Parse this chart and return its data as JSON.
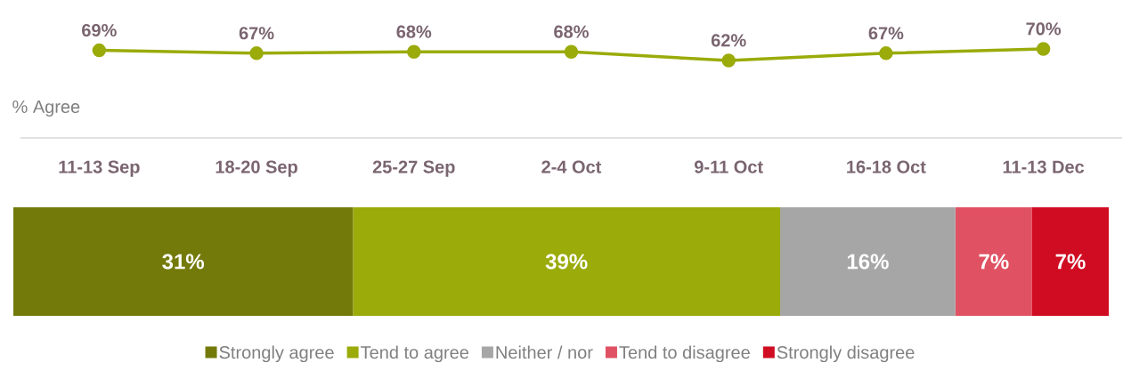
{
  "chart_data": [
    {
      "type": "line",
      "annotations": [
        "% Agree"
      ],
      "categories": [
        "11-13 Sep",
        "18-20 Sep",
        "25-27 Sep",
        "2-4 Oct",
        "9-11 Oct",
        "16-18 Oct",
        "11-13 Dec"
      ],
      "values": [
        69,
        67,
        68,
        68,
        62,
        67,
        70
      ],
      "value_labels": [
        "69%",
        "67%",
        "68%",
        "68%",
        "62%",
        "67%",
        "70%"
      ],
      "color": "#9aab0a",
      "tick_labels": "x",
      "marker": "circle",
      "line_style": "solid"
    },
    {
      "type": "bar",
      "orientation": "horizontal",
      "stacked": true,
      "categories": [
        null
      ],
      "tick_labels": false,
      "legend": "bottom",
      "series": [
        {
          "name": "Strongly agree",
          "color": "#737a0a",
          "values": [
            31
          ],
          "value_labels": [
            "31%"
          ]
        },
        {
          "name": "Tend to agree",
          "color": "#9aab0a",
          "values": [
            39
          ],
          "value_labels": [
            "39%"
          ]
        },
        {
          "name": "Neither / nor",
          "color": "#a6a6a6",
          "values": [
            16
          ],
          "value_labels": [
            "16%"
          ]
        },
        {
          "name": "Tend to disagree",
          "color": "#e05263",
          "values": [
            7
          ],
          "value_labels": [
            "7%"
          ]
        },
        {
          "name": "Strongly disagree",
          "color": "#d00c22",
          "values": [
            7
          ],
          "value_labels": [
            "7%"
          ]
        }
      ]
    }
  ]
}
